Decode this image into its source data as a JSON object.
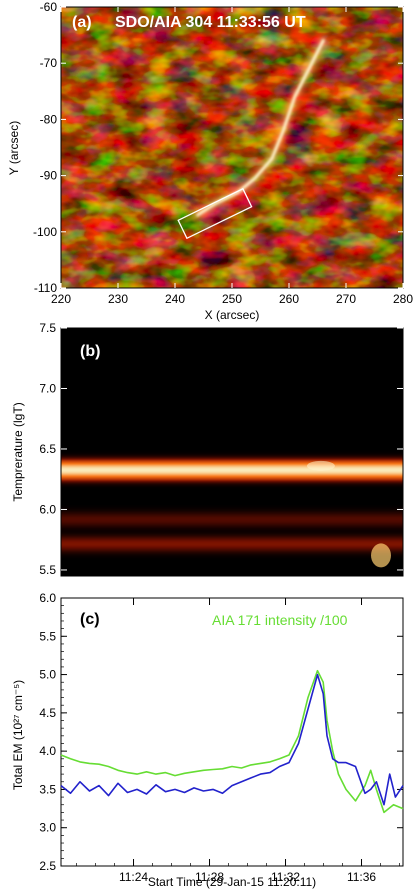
{
  "colors": {
    "aia171": "#66dd33",
    "em": "#2222cc",
    "frame": "#000000"
  },
  "chart_data": [
    {
      "panel": "(a)",
      "type": "heatmap",
      "title": "SDO/AIA 304 11:33:56 UT",
      "xlabel": "X (arcsec)",
      "ylabel": "Y (arcsec)",
      "xlim": [
        220,
        280
      ],
      "ylim": [
        -110,
        -60
      ],
      "xticks": [
        "220",
        "230",
        "240",
        "250",
        "260",
        "270",
        "280"
      ],
      "yticks": [
        "-60",
        "-70",
        "-80",
        "-90",
        "-100",
        "-110"
      ],
      "loop": [
        [
          244,
          -97
        ],
        [
          247,
          -95
        ],
        [
          251,
          -93
        ],
        [
          254,
          -90.5
        ],
        [
          257,
          -87
        ],
        [
          259,
          -82
        ],
        [
          261,
          -76
        ],
        [
          264,
          -70
        ],
        [
          266,
          -66
        ]
      ],
      "box": {
        "x0": 240.5,
        "x1": 253.5,
        "y0": -100,
        "y1": -93.5,
        "angle_deg": 26
      }
    },
    {
      "panel": "(b)",
      "type": "heatmap",
      "xlabel": "",
      "ylabel": "Temprerature (lgT)",
      "ylim": [
        5.45,
        7.5
      ],
      "yticks": [
        "5.5",
        "6.0",
        "6.5",
        "7.0",
        "7.5"
      ],
      "bands": [
        {
          "center": 6.33,
          "peak": 1.0
        },
        {
          "center": 5.92,
          "peak": 0.28
        },
        {
          "center": 5.72,
          "peak": 0.35
        }
      ]
    },
    {
      "panel": "(c)",
      "type": "line",
      "xlabel": "Start Time (29-Jan-15 11:20:11)",
      "ylabel": "Total EM (10²⁷ cm⁻⁵)",
      "xlim": [
        0,
        18
      ],
      "ylim": [
        2.5,
        6.0
      ],
      "xticks": [
        "11:24",
        "11:28",
        "11:32",
        "11:36"
      ],
      "yticks": [
        "2.5",
        "3.0",
        "3.5",
        "4.0",
        "4.5",
        "5.0",
        "5.5",
        "6.0"
      ],
      "legend": "AIA 171 intensity /100",
      "series": [
        {
          "name": "AIA 171 intensity /100",
          "x": [
            0,
            0.5,
            1,
            1.5,
            2,
            2.5,
            3,
            3.5,
            4,
            4.5,
            5,
            5.5,
            6,
            6.5,
            7,
            7.5,
            8,
            8.5,
            9,
            9.5,
            10,
            10.5,
            11,
            11.5,
            12,
            12.5,
            13,
            13.5,
            13.8,
            14,
            14.3,
            14.6,
            15,
            15.5,
            16,
            16.3,
            16.6,
            17,
            17.5,
            18
          ],
          "values": [
            3.95,
            3.9,
            3.86,
            3.84,
            3.83,
            3.8,
            3.75,
            3.72,
            3.7,
            3.73,
            3.7,
            3.72,
            3.68,
            3.71,
            3.73,
            3.75,
            3.76,
            3.77,
            3.8,
            3.78,
            3.82,
            3.84,
            3.86,
            3.9,
            3.95,
            4.2,
            4.7,
            5.05,
            4.9,
            4.4,
            4.0,
            3.7,
            3.5,
            3.35,
            3.55,
            3.75,
            3.5,
            3.2,
            3.3,
            3.25
          ]
        },
        {
          "name": "Total EM",
          "x": [
            0,
            0.5,
            1,
            1.5,
            2,
            2.5,
            3,
            3.5,
            4,
            4.5,
            5,
            5.5,
            6,
            6.5,
            7,
            7.5,
            8,
            8.5,
            9,
            9.5,
            10,
            10.5,
            11,
            11.5,
            12,
            12.5,
            13,
            13.5,
            13.8,
            14,
            14.3,
            14.6,
            15,
            15.5,
            16,
            16.3,
            16.6,
            17,
            17.3,
            17.6,
            18
          ],
          "values": [
            3.55,
            3.45,
            3.6,
            3.48,
            3.55,
            3.42,
            3.58,
            3.46,
            3.5,
            3.44,
            3.56,
            3.47,
            3.5,
            3.46,
            3.52,
            3.48,
            3.5,
            3.45,
            3.55,
            3.6,
            3.65,
            3.7,
            3.72,
            3.8,
            3.85,
            4.1,
            4.55,
            5.0,
            4.75,
            4.2,
            3.9,
            3.85,
            3.85,
            3.8,
            3.45,
            3.5,
            3.6,
            3.3,
            3.7,
            3.4,
            3.55
          ]
        }
      ]
    }
  ]
}
